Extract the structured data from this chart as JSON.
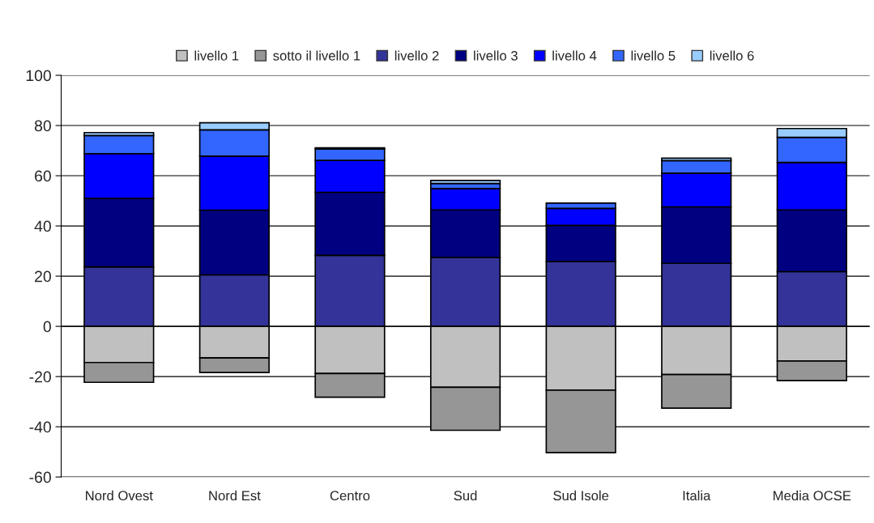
{
  "chart_data": {
    "type": "bar",
    "stacked": true,
    "categories": [
      "Nord Ovest",
      "Nord Est",
      "Centro",
      "Sud",
      "Sud Isole",
      "Italia",
      "Media OCSE"
    ],
    "series": [
      {
        "name": "livello 1",
        "color": "#c0c0c0",
        "values": [
          -14.4,
          -12.6,
          -18.8,
          -24.3,
          -25.4,
          -19.2,
          -13.8
        ]
      },
      {
        "name": "sotto il livello 1",
        "color": "#969696",
        "values": [
          -7.9,
          -5.8,
          -9.4,
          -17.1,
          -24.9,
          -13.4,
          -7.8
        ]
      },
      {
        "name": "livello 2",
        "color": "#333399",
        "values": [
          23.7,
          20.5,
          28.3,
          27.4,
          25.8,
          25.1,
          21.8
        ]
      },
      {
        "name": "livello 3",
        "color": "#000080",
        "values": [
          27.3,
          25.8,
          25.1,
          19.0,
          14.4,
          22.5,
          24.6
        ]
      },
      {
        "name": "livello 4",
        "color": "#0000ff",
        "values": [
          17.8,
          21.5,
          12.7,
          8.5,
          6.8,
          13.4,
          18.9
        ]
      },
      {
        "name": "livello 5",
        "color": "#3366ff",
        "values": [
          7.2,
          10.5,
          4.6,
          2.0,
          2.1,
          5.0,
          10.0
        ]
      },
      {
        "name": "livello 6",
        "color": "#99ccff",
        "values": [
          1.2,
          2.8,
          0.4,
          1.2,
          null,
          1.0,
          3.5
        ]
      }
    ],
    "ylim": [
      -60,
      100
    ],
    "yticks": [
      -60,
      -40,
      -20,
      0,
      20,
      40,
      60,
      80,
      100
    ],
    "grid": "y",
    "legend": "top"
  }
}
